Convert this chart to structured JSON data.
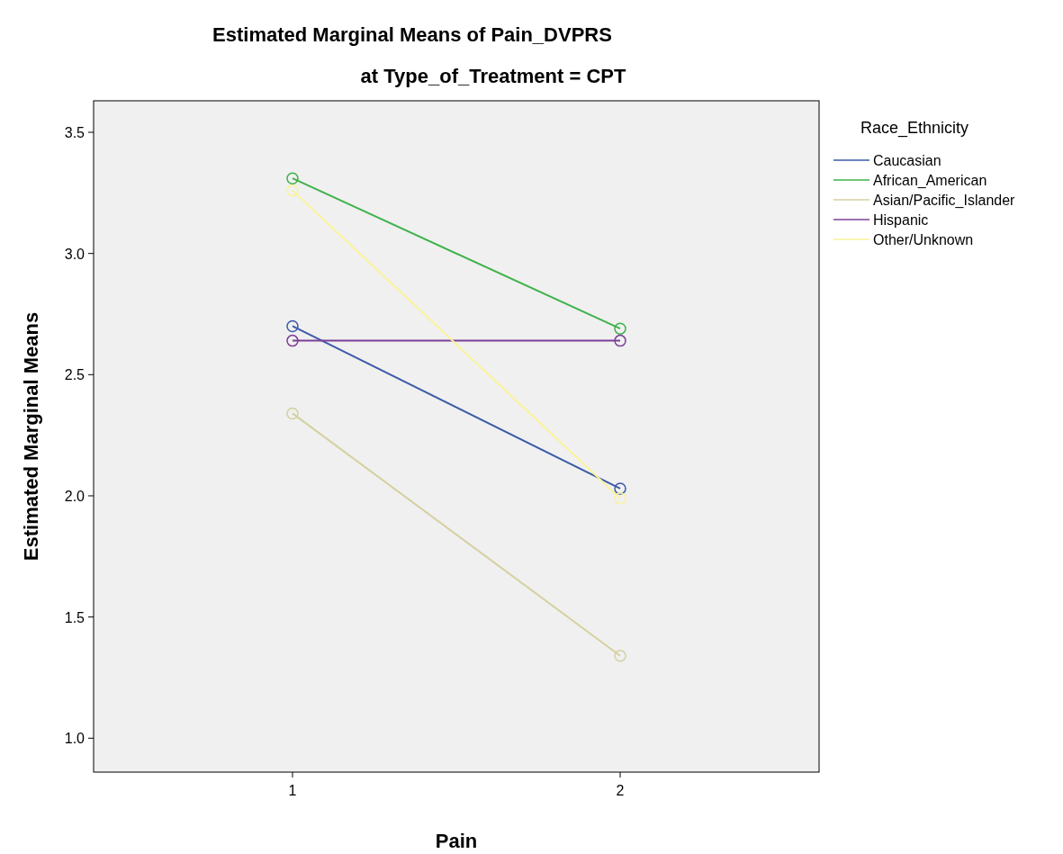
{
  "chart_data": {
    "type": "line",
    "title": "Estimated Marginal Means of Pain_DVPRS",
    "subtitle": "at Type_of_Treatment = CPT",
    "xlabel": "Pain",
    "ylabel": "Estimated Marginal Means",
    "legend_title": "Race_Ethnicity",
    "categories": [
      "1",
      "2"
    ],
    "series": [
      {
        "name": "Caucasian",
        "color": "#3d5aa8",
        "values": [
          2.7,
          2.03
        ]
      },
      {
        "name": "African_American",
        "color": "#3fb24a",
        "values": [
          3.31,
          2.69
        ]
      },
      {
        "name": "Asian/Pacific_Islander",
        "color": "#d4d0a0",
        "values": [
          2.34,
          1.34
        ]
      },
      {
        "name": "Hispanic",
        "color": "#7d3f96",
        "values": [
          2.64,
          2.64
        ]
      },
      {
        "name": "Other/Unknown",
        "color": "#faf39a",
        "values": [
          3.26,
          1.99
        ]
      }
    ],
    "ylim": [
      0.86,
      3.63
    ],
    "yticks": [
      {
        "value": 1,
        "label": "1.0"
      },
      {
        "value": 1.5,
        "label": "1.5"
      },
      {
        "value": 2,
        "label": "2.0"
      },
      {
        "value": 2.5,
        "label": "2.5"
      },
      {
        "value": 3,
        "label": "3.0"
      },
      {
        "value": 3.5,
        "label": "3.5"
      }
    ],
    "legend": "right",
    "marker": "circle",
    "line_style": "solid",
    "grid": false
  }
}
